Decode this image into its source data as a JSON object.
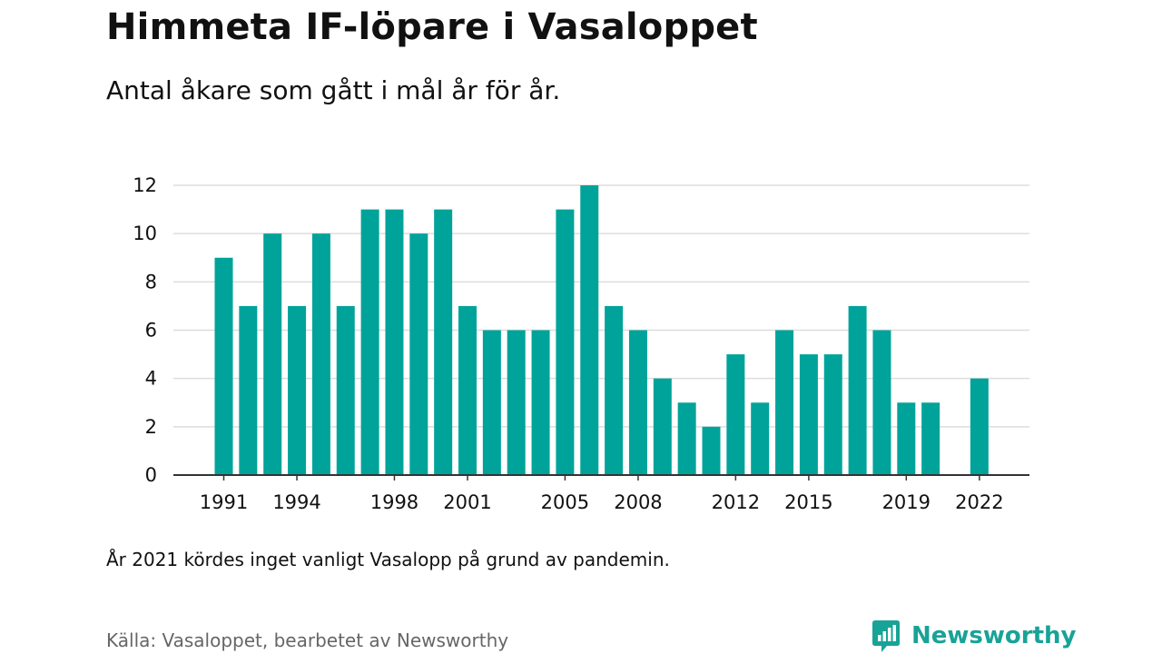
{
  "title": "Himmeta IF-löpare i Vasaloppet",
  "subtitle": "Antal åkare som gått i mål år för år.",
  "note": "År 2021 kördes inget vanligt Vasalopp på grund av pandemin.",
  "source": "Källa: Vasaloppet, bearbetet av Newsworthy",
  "brand": {
    "name": "Newsworthy",
    "icon": "newsworthy-logo-icon",
    "color": "#18a397"
  },
  "colors": {
    "bar": "#00a39a",
    "grid": "#dddddd",
    "axis": "#333333",
    "text": "#111111",
    "muted": "#666666"
  },
  "chart_data": {
    "type": "bar",
    "title": "Himmeta IF-löpare i Vasaloppet",
    "subtitle": "Antal åkare som gått i mål år för år.",
    "xlabel": "",
    "ylabel": "",
    "ylim": [
      0,
      12
    ],
    "yticks": [
      0,
      2,
      4,
      6,
      8,
      10,
      12
    ],
    "grid": true,
    "x": [
      1991,
      1992,
      1993,
      1994,
      1995,
      1996,
      1997,
      1998,
      1999,
      2000,
      2001,
      2002,
      2003,
      2004,
      2005,
      2006,
      2007,
      2008,
      2009,
      2010,
      2011,
      2012,
      2013,
      2014,
      2015,
      2016,
      2017,
      2018,
      2019,
      2020,
      2021,
      2022
    ],
    "values": [
      9,
      7,
      10,
      7,
      10,
      7,
      11,
      11,
      10,
      11,
      7,
      6,
      6,
      6,
      11,
      12,
      7,
      6,
      4,
      3,
      2,
      5,
      3,
      6,
      5,
      5,
      7,
      6,
      3,
      3,
      null,
      4
    ],
    "xtick_labels": [
      "1991",
      "1994",
      "1998",
      "2001",
      "2005",
      "2008",
      "2012",
      "2015",
      "2019",
      "2022"
    ]
  }
}
